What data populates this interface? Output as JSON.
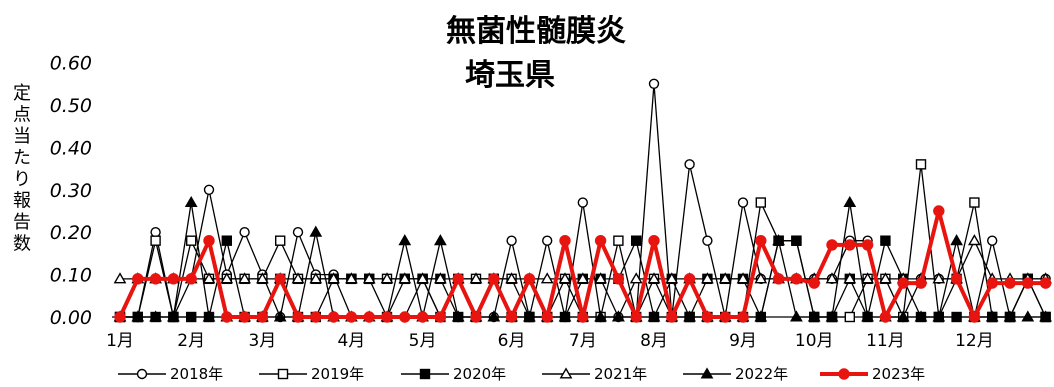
{
  "chart_data": {
    "type": "line",
    "title": "無菌性髄膜炎",
    "subtitle": "埼玉県",
    "ylabel": "定点当たり報告数",
    "xlabel": "",
    "ylim": [
      0,
      0.6
    ],
    "yticks": [
      "0.00",
      "0.10",
      "0.20",
      "0.30",
      "0.40",
      "0.50",
      "0.60"
    ],
    "ytick_values": [
      0,
      0.1,
      0.2,
      0.3,
      0.4,
      0.5,
      0.6
    ],
    "x_weeks": 53,
    "month_labels": [
      {
        "label": "1月",
        "week": 1
      },
      {
        "label": "2月",
        "week": 5
      },
      {
        "label": "3月",
        "week": 9
      },
      {
        "label": "4月",
        "week": 14
      },
      {
        "label": "5月",
        "week": 18
      },
      {
        "label": "6月",
        "week": 23
      },
      {
        "label": "7月",
        "week": 27
      },
      {
        "label": "8月",
        "week": 31
      },
      {
        "label": "9月",
        "week": 36
      },
      {
        "label": "10月",
        "week": 40
      },
      {
        "label": "11月",
        "week": 44
      },
      {
        "label": "12月",
        "week": 49
      }
    ],
    "grid": false,
    "legend_position": "bottom",
    "series": [
      {
        "name": "2018年",
        "color": "#000000",
        "marker": "circle-open",
        "width": 1.3,
        "values": [
          0,
          0,
          0.2,
          0,
          0.09,
          0.3,
          0.1,
          0.2,
          0.1,
          0,
          0.2,
          0.1,
          0.1,
          0,
          0,
          0,
          0,
          0.09,
          0,
          0,
          0,
          0,
          0.18,
          0,
          0.18,
          0,
          0.27,
          0,
          0,
          0,
          0.55,
          0,
          0.36,
          0.18,
          0,
          0.27,
          0.09,
          0.09,
          0.09,
          0.09,
          0.09,
          0.18,
          0.18,
          0,
          0,
          0.09,
          0.09,
          0.09,
          0,
          0.18,
          0,
          0.09,
          0.09
        ]
      },
      {
        "name": "2019年",
        "color": "#000000",
        "marker": "square-open",
        "width": 1.3,
        "values": [
          0,
          0,
          0.18,
          0,
          0.18,
          0.09,
          0.09,
          0.09,
          0.09,
          0.18,
          0.09,
          0.09,
          0.09,
          0.09,
          0.09,
          0.09,
          0.09,
          0.09,
          0,
          0.09,
          0.09,
          0.09,
          0.09,
          0,
          0,
          0.09,
          0,
          0,
          0.18,
          0,
          0.09,
          0,
          0,
          0,
          0,
          0,
          0.27,
          0.18,
          0.18,
          0,
          0,
          0,
          0.09,
          0.09,
          0,
          0.36,
          0,
          0.09,
          0.27,
          0,
          0,
          0.09,
          0
        ]
      },
      {
        "name": "2020年",
        "color": "#000000",
        "marker": "square-filled",
        "width": 1.3,
        "values": [
          0,
          0,
          0,
          0,
          0,
          0,
          0.18,
          0,
          0,
          0.09,
          0,
          0,
          0.09,
          0.09,
          0.09,
          0,
          0.09,
          0.09,
          0.09,
          0,
          0,
          0.09,
          0,
          0,
          0,
          0,
          0.09,
          0.09,
          0.09,
          0.18,
          0,
          0.09,
          0,
          0.09,
          0.09,
          0.09,
          0,
          0.18,
          0.18,
          0,
          0,
          0.09,
          0,
          0.18,
          0.09,
          0,
          0,
          0,
          0,
          0,
          0,
          0.09,
          0
        ]
      },
      {
        "name": "2021年",
        "color": "#000000",
        "marker": "triangle-open",
        "width": 1.3,
        "values": [
          0.09,
          0.09,
          0.09,
          0.09,
          0.09,
          0.09,
          0.09,
          0.09,
          0.09,
          0.09,
          0.09,
          0.09,
          0.09,
          0.09,
          0.09,
          0.09,
          0.09,
          0.09,
          0.09,
          0.09,
          0.09,
          0.09,
          0.09,
          0.09,
          0.09,
          0.09,
          0.09,
          0.09,
          0,
          0.09,
          0.09,
          0.09,
          0.09,
          0.09,
          0.09,
          0.09,
          0.09,
          0.09,
          0.09,
          0.09,
          0.09,
          0.09,
          0.09,
          0.09,
          0.09,
          0.09,
          0.09,
          0.09,
          0.18,
          0.09,
          0.09,
          0.09,
          0.09
        ]
      },
      {
        "name": "2022年",
        "color": "#000000",
        "marker": "triangle-filled",
        "width": 1.3,
        "values": [
          0,
          0,
          0,
          0,
          0.27,
          0,
          0,
          0,
          0,
          0,
          0,
          0.2,
          0,
          0,
          0,
          0,
          0.18,
          0,
          0.18,
          0,
          0,
          0,
          0,
          0,
          0,
          0,
          0,
          0,
          0,
          0,
          0,
          0,
          0,
          0,
          0,
          0,
          0,
          0.18,
          0,
          0,
          0,
          0.27,
          0,
          0,
          0,
          0,
          0,
          0.18,
          0,
          0,
          0,
          0,
          0
        ]
      },
      {
        "name": "2023年",
        "color": "#e8140f",
        "marker": "circle-filled",
        "width": 4,
        "values": [
          0,
          0.09,
          0.09,
          0.09,
          0.09,
          0.18,
          0,
          0,
          0,
          0.09,
          0,
          0,
          0,
          0,
          0,
          0,
          0,
          0,
          0,
          0.09,
          0,
          0.09,
          0,
          0.09,
          0,
          0.18,
          0,
          0.18,
          0.09,
          0,
          0.18,
          0,
          0.09,
          0,
          0,
          0,
          0.18,
          0.09,
          0.09,
          0.08,
          0.17,
          0.17,
          0.17,
          0,
          0.08,
          0.08,
          0.25,
          0.09,
          0,
          0.08,
          0.08,
          0.08,
          0.08
        ]
      }
    ]
  }
}
